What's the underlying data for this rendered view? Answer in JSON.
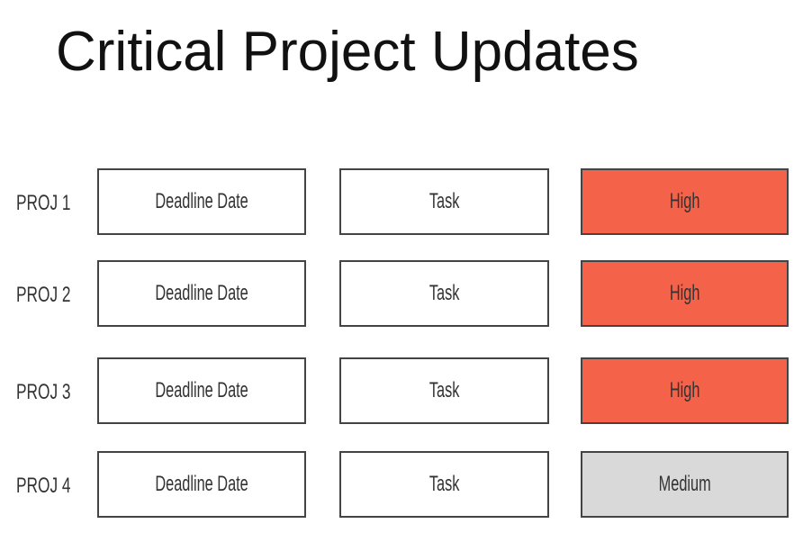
{
  "title": "Critical Project Updates",
  "colors": {
    "high": "#f4624a",
    "medium": "#d9d9d9",
    "border": "#444444"
  },
  "rows": [
    {
      "project": "PROJ 1",
      "deadline": "Deadline Date",
      "task": "Task",
      "priority": "High"
    },
    {
      "project": "PROJ 2",
      "deadline": "Deadline Date",
      "task": "Task",
      "priority": "High"
    },
    {
      "project": "PROJ 3",
      "deadline": "Deadline Date",
      "task": "Task",
      "priority": "High"
    },
    {
      "project": "PROJ 4",
      "deadline": "Deadline Date",
      "task": "Task",
      "priority": "Medium"
    }
  ]
}
